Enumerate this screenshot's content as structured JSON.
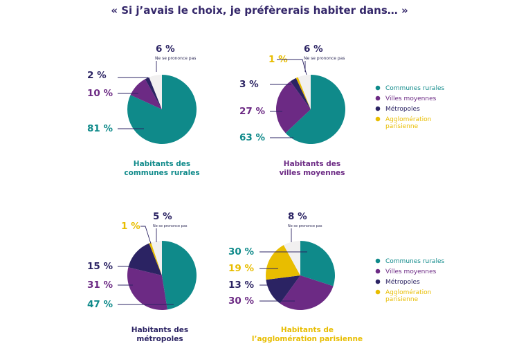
{
  "title": "« Si j’avais le choix, je préfèrerais habiter dans… »",
  "colors": {
    "communes_rurales": "#0f8a8a",
    "villes_moyennes": "#6c2a84",
    "metropoles": "#2b2363",
    "agglomeration": "#e8bd00",
    "ne_se_prononce_pas": "#f1f0f0",
    "leader": "#2b2363"
  },
  "legend": [
    {
      "label": "Communes rurales",
      "color": "#0f8a8a"
    },
    {
      "label": "Villes moyennes",
      "color": "#6c2a84"
    },
    {
      "label": "Métropoles",
      "color": "#2b2363"
    },
    {
      "label": "Agglomération\nparisienne",
      "color": "#e8bd00"
    }
  ],
  "chart_data": [
    {
      "type": "pie",
      "caption": "Habitants des\ncommunes rurales",
      "caption_color": "#0f8a8a",
      "slices": [
        {
          "label": "Communes rurales",
          "value": 81,
          "display": "81 %"
        },
        {
          "label": "Villes moyennes",
          "value": 10,
          "display": "10 %"
        },
        {
          "label": "Métropoles",
          "value": 2,
          "display": "2 %"
        },
        {
          "label": "Ne se prononce pas",
          "value": 6,
          "display": "6 %"
        }
      ]
    },
    {
      "type": "pie",
      "caption": "Habitants des\nvilles moyennes",
      "caption_color": "#6c2a84",
      "slices": [
        {
          "label": "Communes rurales",
          "value": 63,
          "display": "63 %"
        },
        {
          "label": "Villes moyennes",
          "value": 27,
          "display": "27 %"
        },
        {
          "label": "Métropoles",
          "value": 3,
          "display": "3 %"
        },
        {
          "label": "Agglomération parisienne",
          "value": 1,
          "display": "1 %"
        },
        {
          "label": "Ne se prononce pas",
          "value": 6,
          "display": "6 %"
        }
      ]
    },
    {
      "type": "pie",
      "caption": "Habitants des\nmétropoles",
      "caption_color": "#2b2363",
      "slices": [
        {
          "label": "Communes rurales",
          "value": 47,
          "display": "47 %"
        },
        {
          "label": "Villes moyennes",
          "value": 31,
          "display": "31 %"
        },
        {
          "label": "Métropoles",
          "value": 15,
          "display": "15 %"
        },
        {
          "label": "Agglomération parisienne",
          "value": 1,
          "display": "1 %"
        },
        {
          "label": "Ne se prononce pas",
          "value": 5,
          "display": "5 %"
        }
      ]
    },
    {
      "type": "pie",
      "caption": "Habitants de\nl’agglomération parisienne",
      "caption_color": "#e8bd00",
      "slices": [
        {
          "label": "Communes rurales",
          "value": 30,
          "display": "30 %"
        },
        {
          "label": "Villes moyennes",
          "value": 30,
          "display": "30 %"
        },
        {
          "label": "Métropoles",
          "value": 13,
          "display": "13 %"
        },
        {
          "label": "Agglomération parisienne",
          "value": 19,
          "display": "19 %"
        },
        {
          "label": "Ne se prononce pas",
          "value": 8,
          "display": "8 %"
        }
      ]
    }
  ],
  "ns_label": "Ne se prononce pas"
}
